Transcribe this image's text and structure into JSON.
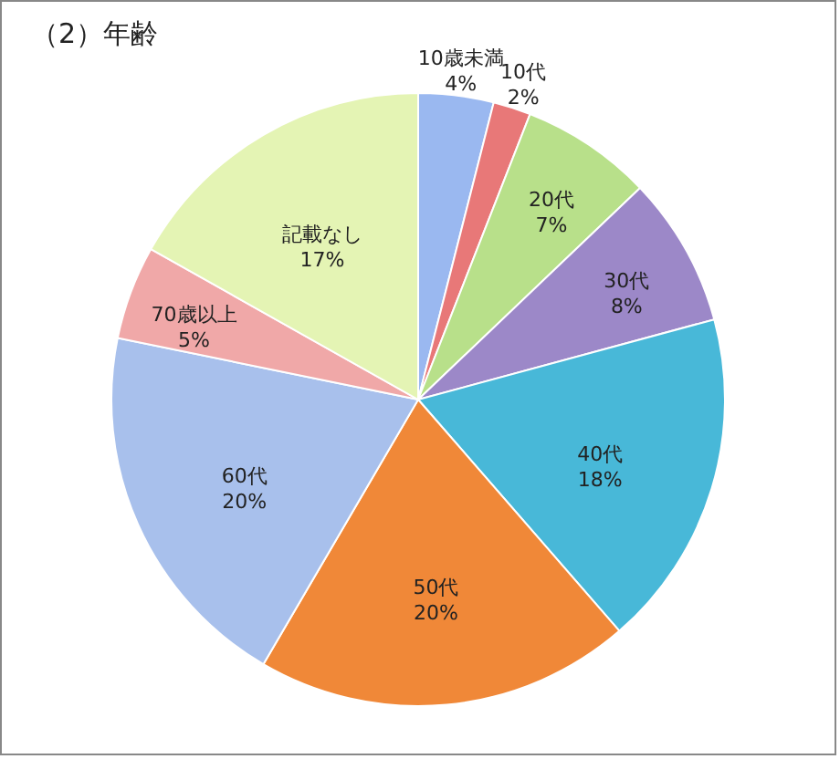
{
  "chart_data": {
    "type": "pie",
    "title": "（2）年齢",
    "categories": [
      "10歳未満",
      "10代",
      "20代",
      "30代",
      "40代",
      "50代",
      "60代",
      "70歳以上",
      "記載なし"
    ],
    "values": [
      4,
      2,
      7,
      8,
      18,
      20,
      20,
      5,
      17
    ],
    "colors": [
      "#9ab8f0",
      "#e87878",
      "#b8e08a",
      "#9c88c8",
      "#48b8d8",
      "#f08838",
      "#a8c0ec",
      "#f0a8a8",
      "#e4f4b4"
    ],
    "value_labels": [
      "4%",
      "2%",
      "7%",
      "8%",
      "18%",
      "20%",
      "20%",
      "5%",
      "17%"
    ],
    "legend": false
  }
}
